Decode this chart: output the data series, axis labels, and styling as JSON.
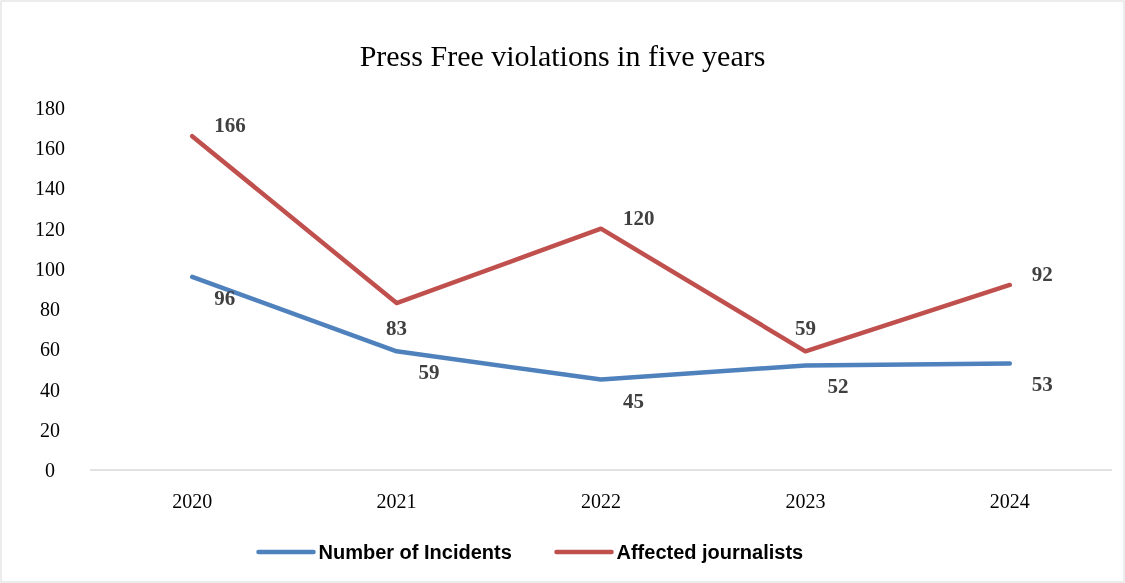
{
  "chart_data": {
    "type": "line",
    "title": "Press Free violations in five years",
    "categories": [
      "2020",
      "2021",
      "2022",
      "2023",
      "2024"
    ],
    "series": [
      {
        "name": "Number of Incidents",
        "color": "#4f81bd",
        "values": [
          96,
          59,
          45,
          52,
          53
        ]
      },
      {
        "name": "Affected journalists",
        "color": "#c0504d",
        "values": [
          166,
          83,
          120,
          59,
          92
        ]
      }
    ],
    "ylim": [
      0,
      180
    ],
    "yticks": [
      0,
      20,
      40,
      60,
      80,
      100,
      120,
      140,
      160,
      180
    ],
    "data_labels": true,
    "legend": "bottom",
    "grid": false,
    "marker": "none",
    "line_style": "solid"
  }
}
